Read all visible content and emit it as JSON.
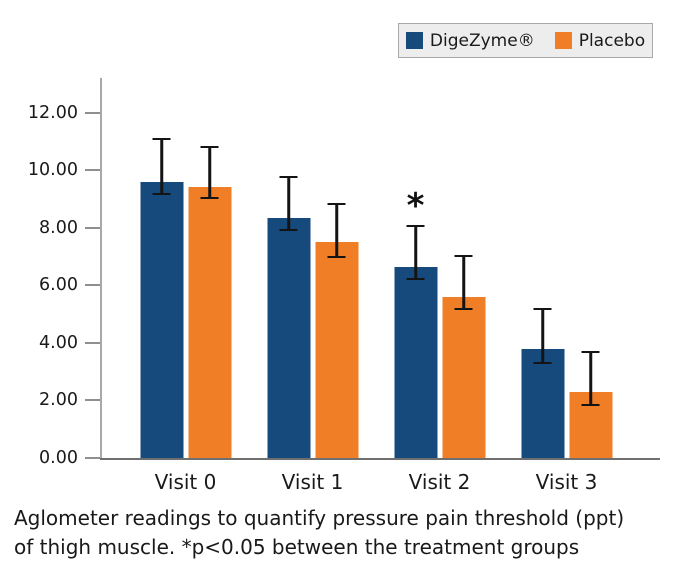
{
  "colors": {
    "digezyme_blue": "#174A7C",
    "placebo_orange": "#EF7E26",
    "axis_line": "#A8A8A8",
    "tick": "#8F8F8F",
    "baseline": "#6F6F6F",
    "error_bar": "#141414",
    "text": "#1A1A1A",
    "legend_bg": "#EDEDED",
    "legend_border": "#A9A9A9"
  },
  "legend": {
    "position": "top-right",
    "items": [
      {
        "label": "DigeZyme®",
        "color": "#174A7C"
      },
      {
        "label": "Placebo",
        "color": "#EF7E26"
      }
    ]
  },
  "chart_data": {
    "type": "bar",
    "title": "",
    "xlabel": "",
    "ylabel": "",
    "categories": [
      "Visit 0",
      "Visit 1",
      "Visit 2",
      "Visit 3"
    ],
    "series": [
      {
        "name": "DigeZyme®",
        "color": "#174A7C",
        "values": [
          9.6,
          8.35,
          6.65,
          3.8
        ],
        "error_low": [
          9.15,
          7.9,
          6.2,
          3.25
        ],
        "error_high": [
          11.1,
          9.8,
          8.1,
          5.2
        ]
      },
      {
        "name": "Placebo",
        "color": "#EF7E26",
        "values": [
          9.4,
          7.5,
          5.6,
          2.3
        ],
        "error_low": [
          9.0,
          6.95,
          5.15,
          1.8
        ],
        "error_high": [
          10.85,
          8.85,
          7.05,
          3.7
        ]
      }
    ],
    "ylim": [
      0,
      13.2
    ],
    "yticks": [
      {
        "value": 0,
        "label": "0.00"
      },
      {
        "value": 2,
        "label": "2.00"
      },
      {
        "value": 4,
        "label": "4.00"
      },
      {
        "value": 6,
        "label": "6.00"
      },
      {
        "value": 8,
        "label": "8.00"
      },
      {
        "value": 10,
        "label": "10.00"
      },
      {
        "value": 12,
        "label": "12.00"
      }
    ],
    "grid": false,
    "legend_position": "top-right",
    "annotations": [
      {
        "text": "*",
        "category": "Visit 2",
        "series": "DigeZyme®",
        "meaning": "p<0.05 between the treatment groups"
      }
    ]
  },
  "caption": {
    "line1": "Aglometer readings to quantify pressure pain threshold (ppt)",
    "line2": "of thigh muscle. *p<0.05 between the treatment groups"
  }
}
